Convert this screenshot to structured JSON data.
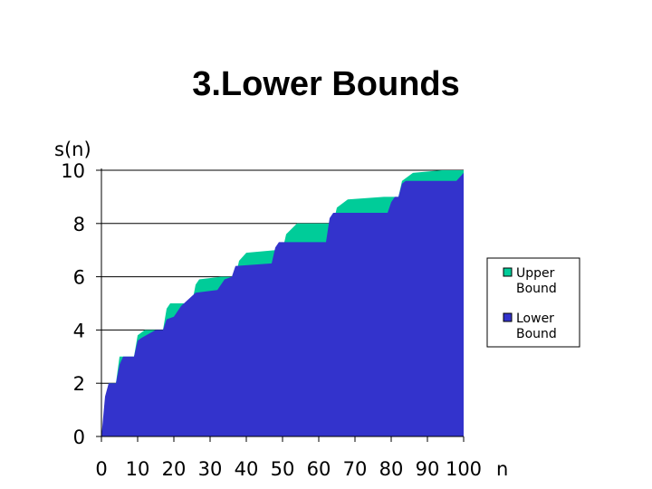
{
  "title": "3.Lower Bounds",
  "chart_data": {
    "type": "area",
    "title": "3.Lower Bounds",
    "ylabel": "s(n)",
    "xlabel": "n",
    "xlim": [
      0,
      100
    ],
    "ylim": [
      0,
      10
    ],
    "x_ticks": [
      0,
      10,
      20,
      30,
      40,
      50,
      60,
      70,
      80,
      90,
      100
    ],
    "y_ticks": [
      0,
      2,
      4,
      6,
      8,
      10
    ],
    "grid": "horizontal",
    "legend_position": "right",
    "series": [
      {
        "name": "Upper Bound",
        "color": "#00cc99",
        "points": [
          [
            0,
            0
          ],
          [
            1,
            1.0
          ],
          [
            2,
            2.0
          ],
          [
            4,
            2.0
          ],
          [
            5,
            3.0
          ],
          [
            9,
            3.0
          ],
          [
            10,
            3.8
          ],
          [
            12,
            4.0
          ],
          [
            17,
            4.0
          ],
          [
            18,
            4.8
          ],
          [
            19,
            5.0
          ],
          [
            25,
            5.0
          ],
          [
            26,
            5.7
          ],
          [
            27,
            5.9
          ],
          [
            33,
            6.0
          ],
          [
            37,
            6.0
          ],
          [
            38,
            6.6
          ],
          [
            40,
            6.9
          ],
          [
            48,
            7.0
          ],
          [
            50,
            7.0
          ],
          [
            51,
            7.6
          ],
          [
            54,
            8.0
          ],
          [
            62,
            8.0
          ],
          [
            64,
            8.0
          ],
          [
            65,
            8.6
          ],
          [
            68,
            8.9
          ],
          [
            78,
            9.0
          ],
          [
            82,
            9.0
          ],
          [
            83,
            9.6
          ],
          [
            86,
            9.9
          ],
          [
            94,
            10.0
          ],
          [
            100,
            10.0
          ]
        ]
      },
      {
        "name": "Lower Bound",
        "color": "#3333cc",
        "points": [
          [
            0,
            0
          ],
          [
            1,
            1.5
          ],
          [
            2,
            2.0
          ],
          [
            4,
            2.0
          ],
          [
            5,
            2.7
          ],
          [
            6,
            3.0
          ],
          [
            9,
            3.0
          ],
          [
            10,
            3.6
          ],
          [
            11,
            3.7
          ],
          [
            15,
            4.0
          ],
          [
            17,
            4.0
          ],
          [
            18,
            4.4
          ],
          [
            20,
            4.5
          ],
          [
            22,
            4.9
          ],
          [
            26,
            5.4
          ],
          [
            32,
            5.5
          ],
          [
            34,
            5.9
          ],
          [
            36,
            6.0
          ],
          [
            37,
            6.4
          ],
          [
            47,
            6.5
          ],
          [
            48,
            7.1
          ],
          [
            49,
            7.3
          ],
          [
            62,
            7.3
          ],
          [
            63,
            8.2
          ],
          [
            64,
            8.4
          ],
          [
            79,
            8.4
          ],
          [
            80,
            8.8
          ],
          [
            81,
            9.0
          ],
          [
            82,
            9.0
          ],
          [
            83,
            9.5
          ],
          [
            84,
            9.6
          ],
          [
            98,
            9.6
          ],
          [
            100,
            9.9
          ]
        ]
      }
    ]
  }
}
